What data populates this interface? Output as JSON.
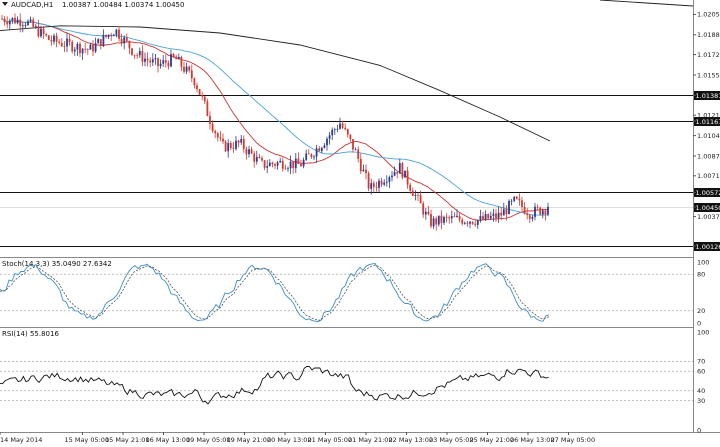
{
  "header": {
    "symbol": "AUDCAD,H1",
    "ohlc": "1.00387 1.00484 1.00374 1.00450"
  },
  "main_panel": {
    "price_min": 1.0005,
    "price_max": 1.0215,
    "price_ticks": [
      "1.02055",
      "1.01885",
      "1.01720",
      "1.01550",
      "1.01381",
      "1.01215",
      "1.01167",
      "1.01045",
      "1.00875",
      "1.00710",
      "1.00572",
      "1.00450",
      "1.00370",
      "1.00126"
    ],
    "horizontal_levels": [
      {
        "label": "1.01381",
        "value": 1.01381
      },
      {
        "label": "1.01167",
        "value": 1.01167
      },
      {
        "label": "1.00572",
        "value": 1.00572
      },
      {
        "label": "1.00126",
        "value": 1.00126
      }
    ],
    "current_price": {
      "label": "1.00450",
      "value": 1.0045
    },
    "colors": {
      "bull": "#2a3b90",
      "bear": "#d23a30",
      "ma_fast": "#cc3333",
      "ma_mid": "#4aa3d8",
      "ma_slow": "#222222",
      "level": "#111111",
      "tag_bg": "#111111"
    }
  },
  "stoch_panel": {
    "title": "Stoch(14,3,3) 35.0490 27.6342",
    "ticks": [
      "100",
      "80",
      "20",
      "0"
    ],
    "colors": {
      "main": "#3b8fd0",
      "signal": "#555555"
    }
  },
  "rsi_panel": {
    "title": "RSI(14) 55.8016",
    "ticks": [
      "100",
      "70",
      "60",
      "40",
      "30",
      "0"
    ],
    "colors": {
      "line": "#111111"
    }
  },
  "time_axis": {
    "labels": [
      "14 May 2014",
      "15 May 05:00",
      "15 May 21:00",
      "16 May 13:00",
      "19 May 05:00",
      "19 May 21:00",
      "20 May 13:00",
      "21 May 05:00",
      "21 May 21:00",
      "22 May 13:00",
      "23 May 05:00",
      "25 May 21:00",
      "26 May 13:00",
      "27 May 05:00"
    ]
  }
}
